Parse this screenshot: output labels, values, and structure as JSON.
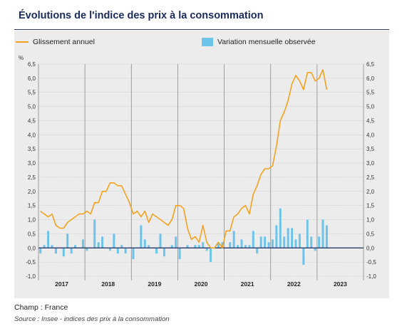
{
  "title": "Évolutions de l'indice des prix à la consommation",
  "legend": {
    "line_label": "Glissement annuel",
    "bar_label": "Variation mensuelle observée"
  },
  "footer": {
    "champ": "Champ : France",
    "source": "Source : Insee - indices des prix à la consommation"
  },
  "colors": {
    "line": "#f3a21d",
    "bar": "#6cc4ea",
    "zero": "#2b3a6b",
    "grid": "#b9b9b9"
  },
  "chart_data": {
    "type": "bar+line",
    "ylabel": "%",
    "ylim": [
      -1.0,
      6.5
    ],
    "yticks": [
      "-1,0",
      "-0,5",
      "0,0",
      "0,5",
      "1,0",
      "1,5",
      "2,0",
      "2,5",
      "3,0",
      "3,5",
      "4,0",
      "4,5",
      "5,0",
      "5,5",
      "6,0",
      "6,5"
    ],
    "ytick_values": [
      -1.0,
      -0.5,
      0.0,
      0.5,
      1.0,
      1.5,
      2.0,
      2.5,
      3.0,
      3.5,
      4.0,
      4.5,
      5.0,
      5.5,
      6.0,
      6.5
    ],
    "years": [
      "2017",
      "2018",
      "2019",
      "2020",
      "2021",
      "2022",
      "2023"
    ],
    "months_per_year": 12,
    "series": [
      {
        "name": "Glissement annuel",
        "kind": "line",
        "values": [
          1.3,
          1.2,
          1.1,
          1.2,
          0.8,
          0.7,
          0.7,
          0.9,
          1.0,
          1.1,
          1.2,
          1.2,
          1.3,
          1.2,
          1.6,
          1.6,
          2.0,
          2.0,
          2.3,
          2.3,
          2.2,
          2.2,
          1.9,
          1.6,
          1.2,
          1.3,
          1.1,
          1.3,
          0.9,
          1.2,
          1.1,
          1.0,
          0.9,
          0.8,
          1.0,
          1.5,
          1.5,
          1.4,
          0.7,
          0.3,
          0.4,
          0.2,
          0.8,
          0.2,
          0.0,
          0.0,
          0.2,
          0.0,
          0.6,
          0.6,
          1.1,
          1.2,
          1.4,
          1.5,
          1.2,
          1.9,
          2.2,
          2.6,
          2.8,
          2.8,
          2.9,
          3.6,
          4.5,
          4.8,
          5.2,
          5.8,
          6.1,
          5.9,
          5.6,
          6.2,
          6.2,
          5.9,
          6.0,
          6.3,
          5.6
        ]
      },
      {
        "name": "Variation mensuelle observée",
        "kind": "bar",
        "values": [
          -0.2,
          0.1,
          0.6,
          0.1,
          -0.2,
          0.0,
          -0.3,
          0.5,
          -0.2,
          0.1,
          0.0,
          0.3,
          -0.1,
          0.0,
          1.0,
          0.2,
          0.4,
          0.0,
          -0.1,
          0.5,
          -0.2,
          0.1,
          -0.2,
          0.0,
          -0.4,
          0.0,
          0.8,
          0.3,
          0.1,
          0.0,
          -0.2,
          0.5,
          -0.3,
          0.0,
          0.1,
          0.4,
          -0.4,
          0.0,
          0.1,
          0.0,
          0.1,
          0.1,
          0.2,
          -0.1,
          -0.5,
          0.0,
          0.2,
          0.2,
          0.0,
          0.2,
          0.6,
          0.1,
          0.3,
          0.1,
          0.1,
          0.6,
          -0.2,
          0.4,
          0.4,
          0.2,
          0.3,
          0.8,
          1.4,
          0.4,
          0.7,
          0.7,
          0.3,
          0.5,
          -0.6,
          1.0,
          0.4,
          -0.1,
          0.4,
          1.0,
          0.8
        ]
      }
    ]
  }
}
